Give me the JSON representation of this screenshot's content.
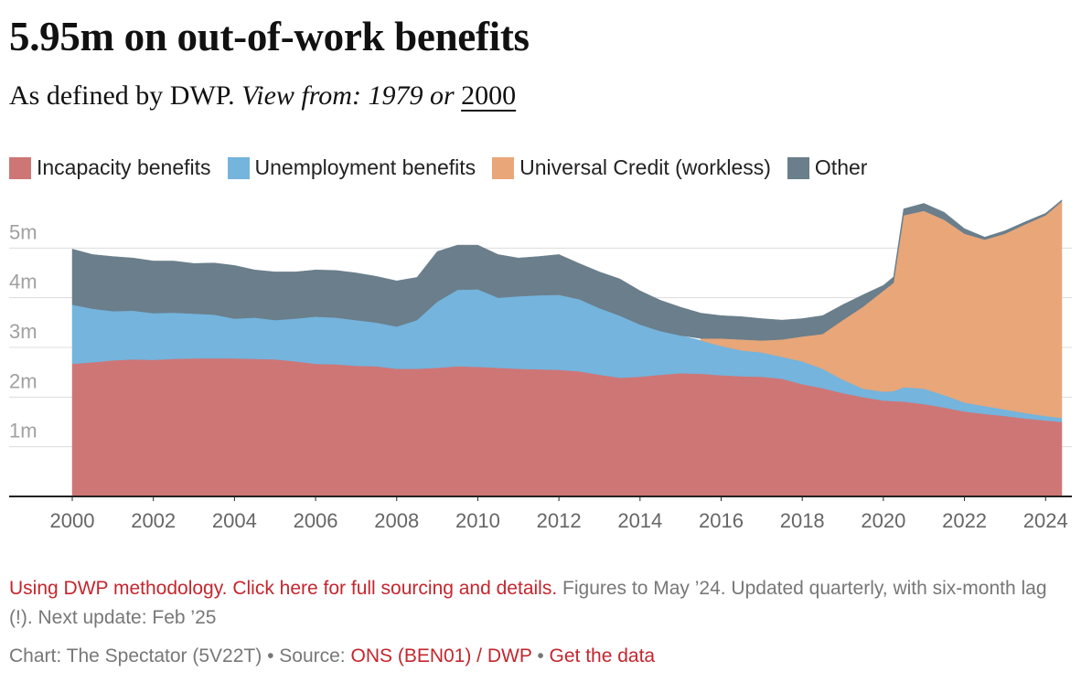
{
  "chart_data": {
    "type": "stacked_area",
    "title": "5.95m on out-of-work benefits",
    "subtitle": {
      "text": "As defined by DWP.",
      "view_from": "View from:",
      "options": [
        "1979",
        "2000"
      ],
      "or": "or"
    },
    "x": [
      2000,
      2000.5,
      2001,
      2001.5,
      2002,
      2002.5,
      2003,
      2003.5,
      2004,
      2004.5,
      2005,
      2005.5,
      2006,
      2006.5,
      2007,
      2007.5,
      2008,
      2008.5,
      2009,
      2009.5,
      2010,
      2010.5,
      2011,
      2011.5,
      2012,
      2012.5,
      2013,
      2013.5,
      2014,
      2014.5,
      2015,
      2015.5,
      2016,
      2016.5,
      2017,
      2017.5,
      2018,
      2018.5,
      2019,
      2019.5,
      2020,
      2020.25,
      2020.5,
      2021,
      2021.5,
      2022,
      2022.5,
      2023,
      2023.5,
      2024,
      2024.4
    ],
    "series": [
      {
        "name": "Incapacity benefits",
        "color": "#ce7676",
        "values": [
          2.67,
          2.7,
          2.74,
          2.76,
          2.75,
          2.77,
          2.78,
          2.78,
          2.78,
          2.77,
          2.76,
          2.72,
          2.67,
          2.66,
          2.63,
          2.62,
          2.57,
          2.57,
          2.59,
          2.62,
          2.61,
          2.59,
          2.57,
          2.56,
          2.55,
          2.52,
          2.45,
          2.39,
          2.41,
          2.45,
          2.48,
          2.47,
          2.44,
          2.42,
          2.41,
          2.37,
          2.26,
          2.18,
          2.08,
          2.0,
          1.93,
          1.92,
          1.91,
          1.86,
          1.79,
          1.71,
          1.66,
          1.62,
          1.57,
          1.53,
          1.5
        ]
      },
      {
        "name": "Unemployment benefits",
        "color": "#74b4dd",
        "values": [
          1.19,
          1.08,
          0.99,
          0.98,
          0.94,
          0.93,
          0.9,
          0.88,
          0.8,
          0.83,
          0.79,
          0.86,
          0.95,
          0.94,
          0.92,
          0.88,
          0.85,
          0.98,
          1.33,
          1.54,
          1.56,
          1.41,
          1.46,
          1.49,
          1.51,
          1.45,
          1.34,
          1.25,
          1.05,
          0.88,
          0.76,
          0.67,
          0.59,
          0.52,
          0.49,
          0.44,
          0.46,
          0.39,
          0.27,
          0.17,
          0.18,
          0.2,
          0.29,
          0.31,
          0.25,
          0.18,
          0.16,
          0.13,
          0.11,
          0.09,
          0.08
        ]
      },
      {
        "name": "Universal Credit (workless)",
        "color": "#e8a679",
        "values": [
          null,
          null,
          null,
          null,
          null,
          null,
          null,
          null,
          null,
          null,
          null,
          null,
          null,
          null,
          null,
          null,
          null,
          null,
          null,
          null,
          null,
          null,
          null,
          null,
          null,
          null,
          null,
          null,
          null,
          null,
          null,
          0.04,
          0.15,
          0.22,
          0.24,
          0.35,
          0.5,
          0.7,
          1.2,
          1.65,
          2.03,
          2.18,
          3.46,
          3.58,
          3.53,
          3.4,
          3.35,
          3.54,
          3.8,
          4.04,
          4.36
        ]
      },
      {
        "name": "Other",
        "color": "#6a7e8b",
        "values": [
          1.12,
          1.09,
          1.1,
          1.06,
          1.05,
          1.04,
          1.01,
          1.04,
          1.07,
          0.96,
          0.97,
          0.94,
          0.94,
          0.95,
          0.95,
          0.93,
          0.92,
          0.86,
          1.01,
          0.9,
          0.89,
          0.87,
          0.77,
          0.78,
          0.81,
          0.72,
          0.73,
          0.74,
          0.68,
          0.62,
          0.57,
          0.51,
          0.46,
          0.46,
          0.44,
          0.39,
          0.36,
          0.37,
          0.31,
          0.24,
          0.11,
          0.12,
          0.13,
          0.15,
          0.15,
          0.1,
          0.05,
          0.06,
          0.05,
          0.04,
          0.03
        ]
      }
    ],
    "xlim": [
      2000,
      2024.4
    ],
    "xticks": [
      2000,
      2002,
      2004,
      2006,
      2008,
      2010,
      2012,
      2014,
      2016,
      2018,
      2020,
      2022,
      2024
    ],
    "ylim": [
      0,
      6
    ],
    "yticks": [
      {
        "value": 1,
        "label": "1m"
      },
      {
        "value": 2,
        "label": "2m"
      },
      {
        "value": 3,
        "label": "3m"
      },
      {
        "value": 4,
        "label": "4m"
      },
      {
        "value": 5,
        "label": "5m"
      }
    ],
    "grid": true,
    "legend": "top-left",
    "footer": {
      "note_link": "Using DWP methodology. Click here for full sourcing and details.",
      "note": "Figures to May ’24. Updated quarterly, with six-month lag (!). Next update: Feb ’25",
      "credit": "Chart: The Spectator (5V22T) • Source:",
      "source": "ONS (BEN01) / DWP",
      "separator": "•",
      "data_link": "Get the data"
    }
  }
}
